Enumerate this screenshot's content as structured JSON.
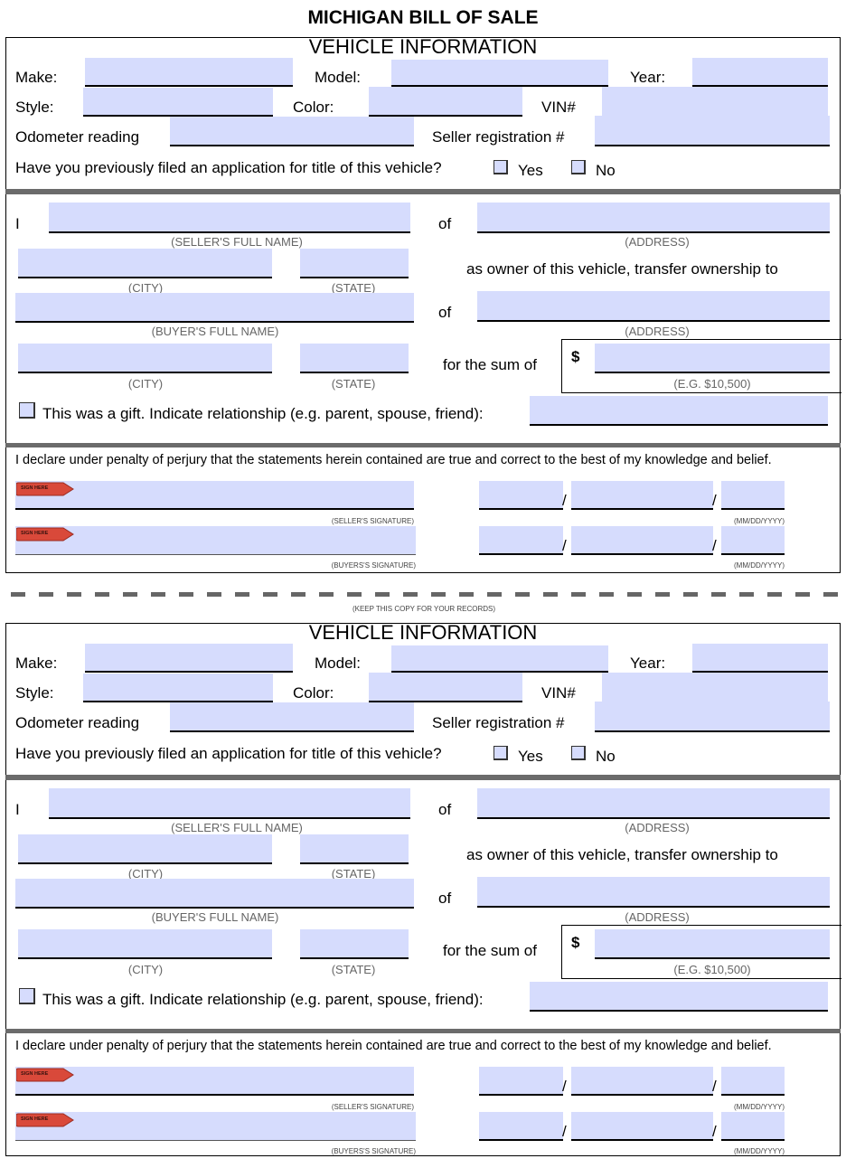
{
  "title": "MICHIGAN BILL OF SALE",
  "keep_copy_note": "(KEEP THIS COPY FOR YOUR RECORDS)",
  "sign_here_tag": "SIGN HERE",
  "colors": {
    "field_fill": "#d6dcfd",
    "divider": "#6b6b6b",
    "sign_tag": "#d9493a"
  },
  "copies": [
    {
      "section_title": "VEHICLE INFORMATION",
      "make": "Make:",
      "model": "Model:",
      "year": "Year:",
      "style": "Style:",
      "color": "Color:",
      "vin": "VIN#",
      "odometer": "Odometer reading",
      "seller_reg": "Seller registration #",
      "question": "Have you previously filed an application for title of this vehicle?",
      "yes": "Yes",
      "no": "No",
      "yes_checked": false,
      "no_checked": false,
      "i": "I",
      "of": "of",
      "seller_name_hint": "(SELLER'S FULL NAME)",
      "address_hint": "(ADDRESS)",
      "city_hint": "(CITY)",
      "state_hint": "(STATE)",
      "transfer_text": "as owner of this vehicle, transfer ownership to",
      "buyer_name_hint": "(BUYER'S FULL NAME)",
      "sum_text": "for the sum of",
      "dollar": "$",
      "sum_hint": "(E.G. $10,500)",
      "gift_text": "This was a gift. Indicate relationship (e.g. parent, spouse, friend):",
      "gift_checked": false,
      "declaration": "I declare under penalty of perjury that the statements herein contained are true and correct to the best of my knowledge and belief.",
      "seller_sig_hint": "(SELLER'S SIGNATURE)",
      "buyer_sig_hint": "(BUYERS'S SIGNATURE)",
      "date_hint": "(MM/DD/YYYY)",
      "slash": "/"
    },
    {
      "section_title": "VEHICLE INFORMATION",
      "make": "Make:",
      "model": "Model:",
      "year": "Year:",
      "style": "Style:",
      "color": "Color:",
      "vin": "VIN#",
      "odometer": "Odometer reading",
      "seller_reg": "Seller registration #",
      "question": "Have you previously filed an application for title of this vehicle?",
      "yes": "Yes",
      "no": "No",
      "yes_checked": false,
      "no_checked": false,
      "i": "I",
      "of": "of",
      "seller_name_hint": "(SELLER'S FULL NAME)",
      "address_hint": "(ADDRESS)",
      "city_hint": "(CITY)",
      "state_hint": "(STATE)",
      "transfer_text": "as owner of this vehicle, transfer ownership to",
      "buyer_name_hint": "(BUYER'S FULL NAME)",
      "sum_text": "for the sum of",
      "dollar": "$",
      "sum_hint": "(E.G. $10,500)",
      "gift_text": "This was a gift. Indicate relationship (e.g. parent, spouse, friend):",
      "gift_checked": false,
      "declaration": "I declare under penalty of perjury that the statements herein contained are true and correct to the best of my knowledge and belief.",
      "seller_sig_hint": "(SELLER'S SIGNATURE)",
      "buyer_sig_hint": "(BUYERS'S SIGNATURE)",
      "date_hint": "(MM/DD/YYYY)",
      "slash": "/"
    }
  ]
}
